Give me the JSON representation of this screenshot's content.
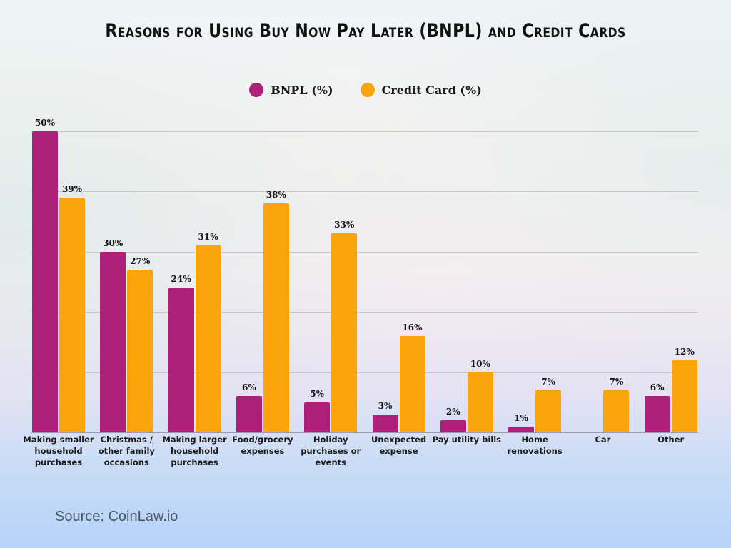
{
  "title": "Reasons for Using Buy Now Pay Later (BNPL) and Credit Cards",
  "legend": [
    {
      "label": "BNPL (%)",
      "color": "#ad1f78"
    },
    {
      "label": "Credit Card (%)",
      "color": "#fba40c"
    }
  ],
  "source": "Source: CoinLaw.io",
  "chart_data": {
    "type": "bar",
    "title": "Reasons for Using Buy Now Pay Later (BNPL) and Credit Cards",
    "xlabel": "",
    "ylabel": "",
    "ylim": [
      0,
      50
    ],
    "grid": true,
    "legend_position": "top",
    "categories": [
      "Making smaller household purchases",
      "Christmas / other family occasions",
      "Making larger household purchases",
      "Food/grocery expenses",
      "Holiday purchases or events",
      "Unexpected expense",
      "Pay utility bills",
      "Home renovations",
      "Car",
      "Other"
    ],
    "series": [
      {
        "name": "BNPL (%)",
        "color": "#ad1f78",
        "values": [
          50,
          30,
          24,
          6,
          5,
          3,
          2,
          1,
          null,
          6
        ],
        "labels": [
          "50%",
          "30%",
          "24%",
          "6%",
          "5%",
          "3%",
          "2%",
          "1%",
          "",
          "6%"
        ]
      },
      {
        "name": "Credit Card (%)",
        "color": "#fba40c",
        "values": [
          39,
          27,
          31,
          38,
          33,
          16,
          10,
          7,
          7,
          12
        ],
        "labels": [
          "39%",
          "27%",
          "31%",
          "38%",
          "33%",
          "16%",
          "10%",
          "7%",
          "7%",
          "12%"
        ]
      }
    ]
  }
}
